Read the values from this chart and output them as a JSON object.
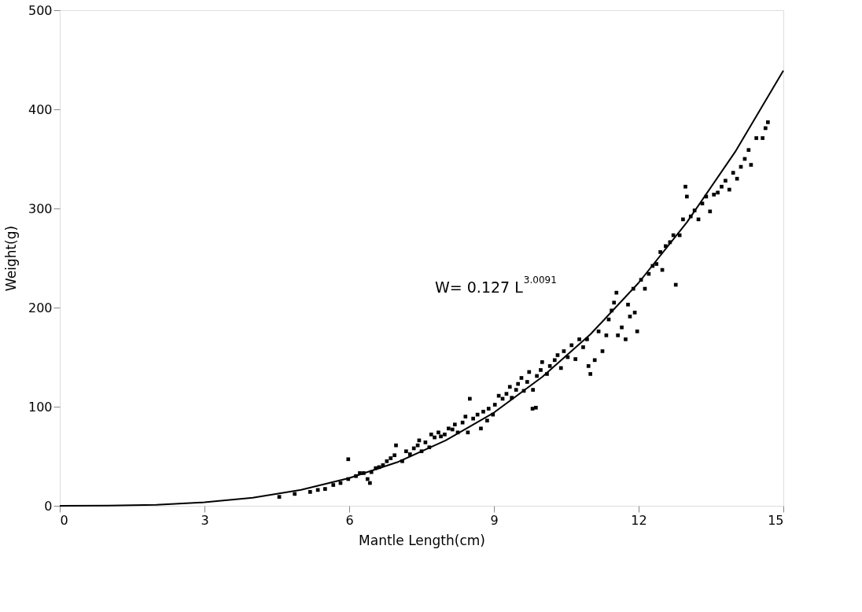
{
  "chart_data": {
    "type": "scatter",
    "xlabel": "Mantle Length(cm)",
    "ylabel": "Weight(g)",
    "xlim": [
      0,
      15
    ],
    "ylim": [
      0,
      500
    ],
    "xticks": [
      0,
      3,
      6,
      9,
      12,
      15
    ],
    "yticks": [
      0,
      100,
      200,
      300,
      400,
      500
    ],
    "grid": false,
    "marker": "square",
    "annotations": [
      "W=  0.127  L$^{3.0091}$"
    ],
    "series": [
      {
        "color": "#000000",
        "x": [
          4.55,
          4.87,
          5.19,
          5.35,
          5.5,
          5.67,
          5.82,
          5.98,
          5.98,
          6.14,
          6.22,
          6.3,
          6.38,
          6.43,
          6.46,
          6.55,
          6.62,
          6.7,
          6.78,
          6.86,
          6.94,
          6.97,
          7.1,
          7.18,
          7.26,
          7.34,
          7.42,
          7.45,
          7.5,
          7.58,
          7.66,
          7.7,
          7.77,
          7.85,
          7.9,
          7.98,
          8.06,
          8.14,
          8.19,
          8.25,
          8.35,
          8.41,
          8.46,
          8.5,
          8.57,
          8.66,
          8.73,
          8.78,
          8.86,
          8.89,
          8.98,
          9.02,
          9.1,
          9.18,
          9.26,
          9.33,
          9.37,
          9.46,
          9.5,
          9.57,
          9.62,
          9.69,
          9.73,
          9.8,
          9.81,
          9.87,
          9.89,
          9.97,
          10.0,
          10.1,
          10.16,
          10.26,
          10.32,
          10.39,
          10.45,
          10.53,
          10.61,
          10.69,
          10.77,
          10.85,
          10.93,
          10.96,
          11.0,
          11.09,
          11.17,
          11.25,
          11.33,
          11.38,
          11.44,
          11.49,
          11.54,
          11.57,
          11.65,
          11.73,
          11.78,
          11.82,
          11.89,
          11.92,
          11.97,
          12.05,
          12.13,
          12.21,
          12.29,
          12.37,
          12.45,
          12.49,
          12.56,
          12.65,
          12.72,
          12.77,
          12.85,
          12.92,
          12.97,
          13.0,
          13.08,
          13.16,
          13.24,
          13.32,
          13.4,
          13.48,
          13.56,
          13.64,
          13.72,
          13.8,
          13.88,
          13.96,
          14.04,
          14.12,
          14.2,
          14.28,
          14.33,
          14.44,
          14.57,
          14.63,
          14.68
        ],
        "values": [
          9,
          12,
          14,
          16,
          17,
          21,
          23,
          27,
          47,
          30,
          33,
          33,
          27,
          23,
          34,
          38,
          39,
          41,
          45,
          48,
          51,
          61,
          45,
          55,
          52,
          58,
          61,
          66,
          55,
          64,
          59,
          72,
          69,
          74,
          70,
          72,
          78,
          77,
          82,
          74,
          84,
          90,
          74,
          108,
          88,
          92,
          78,
          95,
          86,
          98,
          92,
          102,
          111,
          108,
          113,
          120,
          109,
          117,
          123,
          129,
          116,
          125,
          135,
          98,
          117,
          99,
          131,
          137,
          145,
          133,
          141,
          147,
          152,
          139,
          156,
          150,
          162,
          148,
          168,
          160,
          168,
          141,
          133,
          147,
          176,
          156,
          172,
          188,
          197,
          205,
          215,
          172,
          180,
          168,
          203,
          191,
          219,
          195,
          176,
          228,
          219,
          234,
          242,
          244,
          256,
          238,
          262,
          266,
          273,
          223,
          273,
          289,
          322,
          312,
          292,
          298,
          289,
          305,
          312,
          297,
          314,
          316,
          322,
          328,
          319,
          336,
          330,
          342,
          350,
          359,
          344,
          371,
          371,
          381,
          387
        ]
      },
      {
        "type": "line",
        "color": "#000000",
        "marker": "none",
        "line_style": "solid",
        "x": [
          0,
          1,
          2,
          3,
          4,
          5,
          6,
          7,
          8,
          9,
          10,
          11,
          12,
          13,
          14,
          15
        ],
        "values": [
          0,
          0.1,
          1.0,
          3.5,
          8.2,
          16,
          28,
          44,
          66,
          94,
          130,
          173,
          225,
          286,
          357,
          439
        ]
      }
    ]
  }
}
